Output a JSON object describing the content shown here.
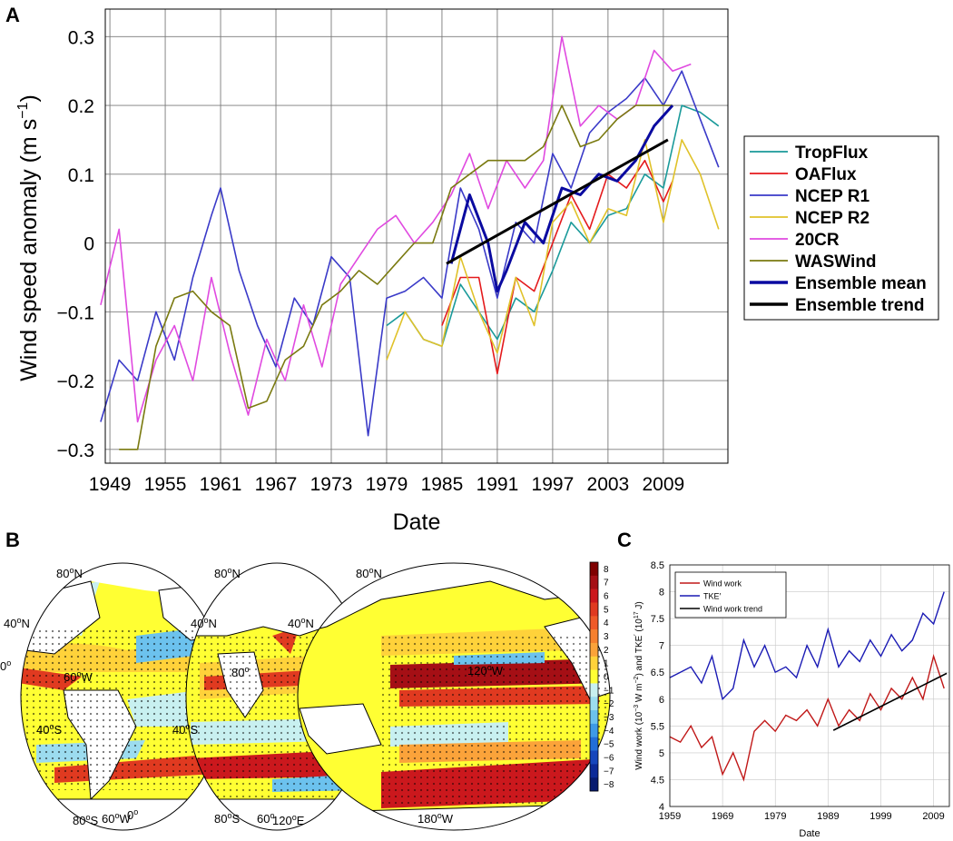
{
  "panels": {
    "a": {
      "letter": "A"
    },
    "b": {
      "letter": "B"
    },
    "c": {
      "letter": "C"
    }
  },
  "colors": {
    "TropFlux": "#1a9a9a",
    "OAFlux": "#e41a1c",
    "NCEP R1": "#3a3ac8",
    "NCEP R2": "#e0c22a",
    "20CR": "#e04ae0",
    "WASWind": "#7a7a10",
    "Ensemble mean": "#0a0aa0",
    "Ensemble trend": "#000000",
    "Wind work": "#c01818",
    "TKE": "#1a1ab4",
    "Wind work trend": "#000000",
    "land": "#ffffff",
    "stipple": "#000000"
  },
  "chart_data": [
    {
      "type": "line",
      "xlabel": "Date",
      "ylabel": "Wind speed anomaly (m s",
      "ylabel_sup": "−1",
      "ylabel_end": ")",
      "xlim": [
        1948.5,
        2016
      ],
      "ylim": [
        -0.32,
        0.34
      ],
      "x_ticks": [
        1949,
        1955,
        1961,
        1967,
        1973,
        1979,
        1985,
        1991,
        1997,
        2003,
        2009
      ],
      "x_tick_labels": [
        "1949",
        "1955",
        "1961",
        "1967",
        "1973",
        "1979",
        "1985",
        "1991",
        "1997",
        "2003",
        "2009"
      ],
      "y_ticks": [
        -0.3,
        -0.2,
        -0.1,
        0,
        0.1,
        0.2,
        0.3
      ],
      "y_tick_labels": [
        "−0.3",
        "−0.2",
        "−0.1",
        "0",
        "0.1",
        "0.2",
        "0.3"
      ],
      "grid": true,
      "legend_position": "outside-right",
      "legend": [
        "TropFlux",
        "OAFlux",
        "NCEP R1",
        "NCEP R2",
        "20CR",
        "WASWind",
        "Ensemble mean",
        "Ensemble trend"
      ],
      "series": [
        {
          "name": "TropFlux",
          "x": [
            1979,
            1981,
            1983,
            1985,
            1987,
            1989,
            1991,
            1993,
            1995,
            1997,
            1999,
            2001,
            2003,
            2005,
            2007,
            2009,
            2011,
            2013,
            2015
          ],
          "y": [
            -0.12,
            -0.1,
            -0.14,
            -0.15,
            -0.06,
            -0.1,
            -0.14,
            -0.08,
            -0.1,
            -0.04,
            0.03,
            0.0,
            0.04,
            0.05,
            0.1,
            0.08,
            0.2,
            0.19,
            0.17
          ]
        },
        {
          "name": "OAFlux",
          "x": [
            1985,
            1987,
            1989,
            1991,
            1993,
            1995,
            1997,
            1999,
            2001,
            2003,
            2005,
            2007,
            2009,
            2010
          ],
          "y": [
            -0.12,
            -0.05,
            -0.05,
            -0.19,
            -0.05,
            -0.07,
            0.0,
            0.07,
            0.02,
            0.1,
            0.08,
            0.12,
            0.06,
            0.09
          ]
        },
        {
          "name": "NCEP R1",
          "x": [
            1948,
            1950,
            1952,
            1954,
            1956,
            1958,
            1960,
            1961,
            1963,
            1965,
            1967,
            1969,
            1971,
            1973,
            1975,
            1977,
            1979,
            1981,
            1983,
            1985,
            1987,
            1989,
            1991,
            1993,
            1995,
            1997,
            1999,
            2001,
            2003,
            2005,
            2007,
            2009,
            2011,
            2013,
            2015
          ],
          "y": [
            -0.26,
            -0.17,
            -0.2,
            -0.1,
            -0.17,
            -0.05,
            0.04,
            0.08,
            -0.04,
            -0.12,
            -0.18,
            -0.08,
            -0.12,
            -0.02,
            -0.05,
            -0.28,
            -0.08,
            -0.07,
            -0.05,
            -0.08,
            0.08,
            0.02,
            -0.08,
            0.03,
            0.0,
            0.13,
            0.08,
            0.16,
            0.19,
            0.21,
            0.24,
            0.2,
            0.25,
            0.18,
            0.11
          ]
        },
        {
          "name": "NCEP R2",
          "x": [
            1979,
            1981,
            1983,
            1985,
            1987,
            1989,
            1991,
            1993,
            1995,
            1997,
            1999,
            2001,
            2003,
            2005,
            2007,
            2009,
            2011,
            2013,
            2015
          ],
          "y": [
            -0.17,
            -0.1,
            -0.14,
            -0.15,
            -0.02,
            -0.1,
            -0.16,
            -0.05,
            -0.12,
            0.03,
            0.06,
            0.0,
            0.05,
            0.04,
            0.15,
            0.03,
            0.15,
            0.1,
            0.02
          ]
        },
        {
          "name": "20CR",
          "x": [
            1948,
            1950,
            1952,
            1954,
            1956,
            1958,
            1960,
            1962,
            1964,
            1966,
            1968,
            1970,
            1972,
            1974,
            1976,
            1978,
            1980,
            1982,
            1984,
            1986,
            1988,
            1990,
            1992,
            1994,
            1996,
            1998,
            2000,
            2002,
            2004,
            2006,
            2008,
            2010,
            2012
          ],
          "y": [
            -0.09,
            0.02,
            -0.26,
            -0.17,
            -0.12,
            -0.2,
            -0.05,
            -0.16,
            -0.25,
            -0.14,
            -0.2,
            -0.09,
            -0.18,
            -0.06,
            -0.02,
            0.02,
            0.04,
            0.0,
            0.03,
            0.07,
            0.13,
            0.05,
            0.12,
            0.08,
            0.12,
            0.3,
            0.17,
            0.2,
            0.18,
            0.2,
            0.28,
            0.25,
            0.26
          ]
        },
        {
          "name": "WASWind",
          "x": [
            1950,
            1952,
            1954,
            1956,
            1958,
            1960,
            1962,
            1964,
            1966,
            1968,
            1970,
            1972,
            1974,
            1976,
            1978,
            1980,
            1982,
            1984,
            1986,
            1988,
            1990,
            1992,
            1994,
            1996,
            1998,
            2000,
            2002,
            2004,
            2006,
            2008,
            2010
          ],
          "y": [
            -0.3,
            -0.3,
            -0.15,
            -0.08,
            -0.07,
            -0.1,
            -0.12,
            -0.24,
            -0.23,
            -0.17,
            -0.15,
            -0.09,
            -0.07,
            -0.04,
            -0.06,
            -0.03,
            0.0,
            0.0,
            0.08,
            0.1,
            0.12,
            0.12,
            0.12,
            0.14,
            0.2,
            0.14,
            0.15,
            0.18,
            0.2,
            0.2,
            0.2
          ]
        },
        {
          "name": "Ensemble mean",
          "x": [
            1986,
            1988,
            1990,
            1991,
            1992,
            1994,
            1996,
            1998,
            2000,
            2002,
            2004,
            2006,
            2008,
            2010
          ],
          "y": [
            -0.03,
            0.07,
            0.0,
            -0.07,
            -0.04,
            0.03,
            0.0,
            0.08,
            0.07,
            0.1,
            0.09,
            0.12,
            0.17,
            0.2
          ]
        },
        {
          "name": "Ensemble trend",
          "x": [
            1985.5,
            2009.5
          ],
          "y": [
            -0.03,
            0.15
          ]
        }
      ]
    },
    {
      "type": "line",
      "xlabel": "Date",
      "ylabel": "Wind work (10",
      "ylabel_sup1": "−3",
      "ylabel_mid": " W m",
      "ylabel_sup2": "−2",
      "ylabel_mid2": ") and TKE",
      "ylabel_sup3": "′",
      "ylabel_mid3": " (10",
      "ylabel_sup4": "17",
      "ylabel_end": " J)",
      "xlim": [
        1959,
        2012
      ],
      "ylim": [
        4,
        8.5
      ],
      "x_ticks": [
        1959,
        1969,
        1979,
        1989,
        1999,
        2009
      ],
      "x_tick_labels": [
        "1959",
        "1969",
        "1979",
        "1989",
        "1999",
        "2009"
      ],
      "y_ticks": [
        4,
        4.5,
        5,
        5.5,
        6,
        6.5,
        7,
        7.5,
        8,
        8.5
      ],
      "y_tick_labels": [
        "4",
        "4.5",
        "5",
        "5.5",
        "6",
        "6.5",
        "7",
        "7.5",
        "8",
        "8.5"
      ],
      "grid": true,
      "legend_position": "top-left",
      "legend": [
        "Wind work",
        "TKE′",
        "Wind work trend"
      ],
      "series": [
        {
          "name": "Wind work",
          "x": [
            1959,
            1961,
            1963,
            1965,
            1967,
            1969,
            1971,
            1973,
            1975,
            1977,
            1979,
            1981,
            1983,
            1985,
            1987,
            1989,
            1991,
            1993,
            1995,
            1997,
            1999,
            2001,
            2003,
            2005,
            2007,
            2009,
            2011
          ],
          "y": [
            5.3,
            5.2,
            5.5,
            5.1,
            5.3,
            4.6,
            5.0,
            4.5,
            5.4,
            5.6,
            5.4,
            5.7,
            5.6,
            5.8,
            5.5,
            6.0,
            5.5,
            5.8,
            5.6,
            6.1,
            5.8,
            6.2,
            6.0,
            6.4,
            6.0,
            6.8,
            6.2
          ]
        },
        {
          "name": "TKE′",
          "x": [
            1959,
            1961,
            1963,
            1965,
            1967,
            1969,
            1971,
            1973,
            1975,
            1977,
            1979,
            1981,
            1983,
            1985,
            1987,
            1989,
            1991,
            1993,
            1995,
            1997,
            1999,
            2001,
            2003,
            2005,
            2007,
            2009,
            2011
          ],
          "y": [
            6.4,
            6.5,
            6.6,
            6.3,
            6.8,
            6.0,
            6.2,
            7.1,
            6.6,
            7.0,
            6.5,
            6.6,
            6.4,
            7.0,
            6.6,
            7.3,
            6.6,
            6.9,
            6.7,
            7.1,
            6.8,
            7.2,
            6.9,
            7.1,
            7.6,
            7.4,
            8.0
          ]
        },
        {
          "name": "Wind work trend",
          "x": [
            1990,
            2011.5
          ],
          "y": [
            5.42,
            6.48
          ]
        }
      ]
    },
    {
      "type": "heatmap",
      "colorbar_ticks": [
        "8",
        "7",
        "6",
        "5",
        "4",
        "3",
        "2",
        "1",
        "0",
        "−1",
        "−2",
        "−3",
        "−4",
        "−5",
        "−6",
        "−7",
        "−8"
      ],
      "colorbar_colors": [
        "#7f0000",
        "#a50f15",
        "#cb181d",
        "#e03a20",
        "#ef5a28",
        "#f6802e",
        "#fba33a",
        "#ffd23a",
        "#ffff33",
        "#c8f0f0",
        "#9cdcef",
        "#6cc2ee",
        "#3e9ae6",
        "#226ed8",
        "#1646bc",
        "#0c2a98",
        "#061a70"
      ],
      "map_labels": {
        "lat_80n": "80",
        "lat_40n": "40",
        "lat_0": "0",
        "lat_40s": "40",
        "lat_80s": "80",
        "lon_60w": "60",
        "lon_60w_b": "60",
        "lon_0": "0",
        "lon_80e": "80",
        "lon_120w": "120",
        "lon_180": "180",
        "lon_120e": "120",
        "deg": "o",
        "N": "N",
        "S": "S",
        "W": "W",
        "E": "E"
      }
    }
  ]
}
